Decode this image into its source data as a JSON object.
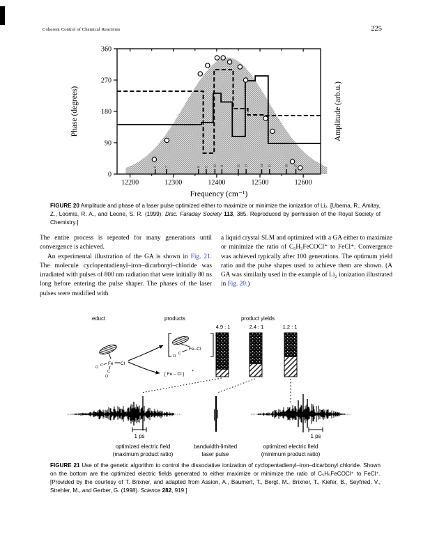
{
  "page": {
    "header_left": "Coherent Control of Chemical Reactions",
    "page_number": "225"
  },
  "colors": {
    "ink": "#000000",
    "link_blue": "#2233cc",
    "halftone_gray": "#9a9a9a"
  },
  "body": {
    "col1_para1": "The entire process is repeated for many generations until convergence is achieved.",
    "col1_para2_pre": "An experimental illustration of the GA is shown in ",
    "col1_para2_link": "Fig. 21.",
    "col1_para2_post": " The molecule cyclopentadienyl–iron–dicarbonyl–chloride was irradiated with pulses of 800 nm radiation that were initially 80 ns long before entering the pulse shaper. The phases of the laser pulses were modified with",
    "col2_pre": "a liquid crystal SLM and optimized with a GA either to maximize or minimize the ratio of C₅H₅FeCOCl⁺ to FeCl⁺. Convergence was achieved typically after 100 generations. The optimum yield ratio and the pulse shapes used to achieve them are shown. (A GA was similarly used in the example of Li₂ ionization illustrated in ",
    "col2_link": "Fig. 20.",
    "col2_post": ")"
  },
  "fig20_caption": {
    "label": "FIGURE 20",
    "p1": "  Amplitude and phase of a laser pulse optimized either to maximize or minimize the ionization of Li₂. [Uberna, R., Amitay, Z., Loomis, R. A., and Leone, S. R. (1999). ",
    "italic": "Disc. Faraday Society",
    "bold": " 113",
    "p2": ", 385. Reproduced by permission of the Royal Society of Chemistry.]"
  },
  "fig21_caption": {
    "label": "FIGURE 21",
    "p1": "  Use of the genetic algorithm to control the dissociative ionization of cyclopentadienyl–iron–dicarbonyl chloride. Shown on the bottom are the optimized electric fields generated to either maximize or minimize the ratio of C₅H₅FeCOCl⁺ to FeCl⁺. [Provided by the courtesy of T. Brixner, and adapted from Assion, A., Baumert, T., Bergt, M., Brixner, T., Kiefer, B., Seyfried, V., Strehler, M., and Gerber, G. (1998). ",
    "italic": "Science",
    "bold": " 282",
    "p2": ", 919.]"
  },
  "chart_data": [
    {
      "id": "figure-20",
      "type": "line",
      "title": "Amplitude and phase of an optimized laser pulse",
      "xlabel": "Frequency (cm⁻¹)",
      "ylabel_left": "Phase (degrees)",
      "ylabel_right": "Amplitude (arb.u.)",
      "xlim": [
        12170,
        12640
      ],
      "ylim": [
        0,
        360
      ],
      "x_ticks": [
        12200,
        12300,
        12400,
        12500,
        12600
      ],
      "x_minor_ticks": [
        12250,
        12350,
        12450,
        12550
      ],
      "y_ticks": [
        0,
        90,
        180,
        270,
        360
      ],
      "grid": false,
      "amplitude_envelope": {
        "shape": "gaussian",
        "center": 12425,
        "sigma": 97,
        "peak_fraction": 0.93,
        "base": [
          12190,
          12655
        ],
        "style": "stippled-gray"
      },
      "series": [
        {
          "name": "phase-step-solid (maximize)",
          "style": "solid-step",
          "segments": [
            [
              12170,
              12365,
              142
            ],
            [
              12365,
              12392,
              148
            ],
            [
              12392,
              12410,
              232
            ],
            [
              12410,
              12436,
              207
            ],
            [
              12436,
              12466,
              108
            ],
            [
              12466,
              12489,
              268
            ],
            [
              12489,
              12519,
              282
            ],
            [
              12519,
              12640,
              88
            ]
          ]
        },
        {
          "name": "phase-step-dashed (minimize)",
          "style": "dashed-step",
          "segments": [
            [
              12170,
              12369,
              238
            ],
            [
              12369,
              12394,
              60
            ],
            [
              12394,
              12438,
              300
            ],
            [
              12438,
              12472,
              188
            ],
            [
              12472,
              12510,
              170
            ],
            [
              12510,
              12640,
              168
            ]
          ]
        },
        {
          "name": "measured-phase-points",
          "style": "open-circle",
          "points": [
            [
              12256,
              42
            ],
            [
              12285,
              97
            ],
            [
              12362,
              288
            ],
            [
              12379,
              312
            ],
            [
              12401,
              334
            ],
            [
              12415,
              334
            ],
            [
              12430,
              322
            ],
            [
              12454,
              308
            ],
            [
              12467,
              270
            ],
            [
              12513,
              160
            ],
            [
              12529,
              123
            ],
            [
              12575,
              36
            ],
            [
              12593,
              18
            ]
          ]
        }
      ],
      "inner_ticks": {
        "positions": [
          12258,
          12284,
          12358,
          12376,
          12396,
          12412,
          12450,
          12468,
          12504,
          12522,
          12561,
          12583
        ],
        "labels": [
          "6",
          "7",
          "8",
          "9",
          "10",
          "11",
          "12",
          "13",
          "14",
          "15",
          "16",
          "17"
        ]
      }
    },
    {
      "id": "figure-21",
      "type": "diagram",
      "headers": {
        "educt": "educt",
        "products": "products",
        "product_yields": "product yields"
      },
      "ratios": [
        "4.9 : 1",
        "2.4 : 1",
        "1.2 : 1"
      ],
      "bars": [
        {
          "label": "4.9 : 1",
          "ratio": 4.9,
          "top_pattern": "dark-speckled",
          "bottom_pattern": "diagonal-hatch"
        },
        {
          "label": "2.4 : 1",
          "ratio": 2.4,
          "top_pattern": "dark-speckled",
          "bottom_pattern": "diagonal-hatch"
        },
        {
          "label": "1.2 : 1",
          "ratio": 1.2,
          "top_pattern": "dark-speckled",
          "bottom_pattern": "diagonal-hatch"
        }
      ],
      "molecules": {
        "educt": {
          "fe": "Fe",
          "cl": "Cl",
          "o1": "O",
          "c1": "C",
          "c2": "C",
          "o2": "O"
        },
        "product1": {
          "fecl": "Fe–Cl",
          "c": "C",
          "o": "O",
          "charge": "+"
        },
        "product2": {
          "formula": "[ Fe – Cl ]",
          "charge": "+"
        }
      },
      "scale_bars": [
        "1 ps",
        "1 ps"
      ],
      "waveform_labels": [
        [
          "optimized electric field",
          "(maximum product ratio)"
        ],
        [
          "bandwidth-limited",
          "laser pulse"
        ],
        [
          "optimized electric field",
          "(minimum product ratio)"
        ]
      ]
    }
  ]
}
